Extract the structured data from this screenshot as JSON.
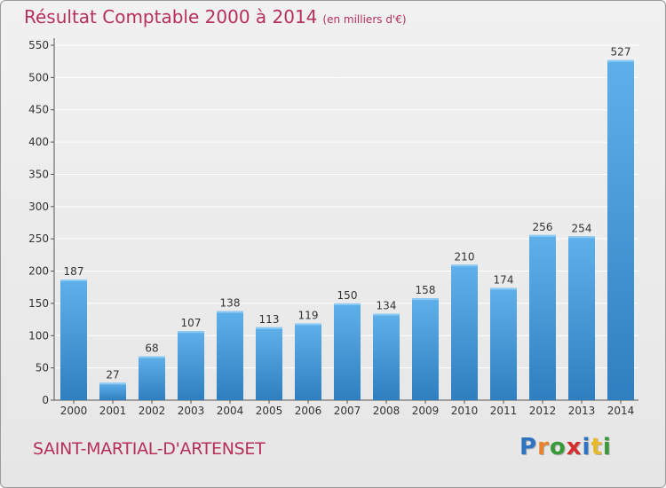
{
  "header": {
    "title": "Résultat Comptable 2000 à 2014",
    "unit": "(en milliers d'€)"
  },
  "footer": {
    "commune": "SAINT-MARTIAL-D'ARTENSET",
    "logo": {
      "letters": [
        "P",
        "r",
        "o",
        "x",
        "i",
        "t",
        "i"
      ],
      "colors": [
        "#2e74c0",
        "#e8832a",
        "#3a9a3a",
        "#d62d2d",
        "#2e74c0",
        "#e8b92a",
        "#3a9a3a"
      ]
    }
  },
  "colors": {
    "title": "#b8305a",
    "bar_top": "#5fb0ea",
    "bar_bottom": "#2f7fc0",
    "grid": "#ffffff",
    "axis_text": "#333333"
  },
  "chart_data": {
    "type": "bar",
    "categories": [
      "2000",
      "2001",
      "2002",
      "2003",
      "2004",
      "2005",
      "2006",
      "2007",
      "2008",
      "2009",
      "2010",
      "2011",
      "2012",
      "2013",
      "2014"
    ],
    "values": [
      187,
      27,
      68,
      107,
      138,
      113,
      119,
      150,
      134,
      158,
      210,
      174,
      256,
      254,
      527
    ],
    "y_ticks": [
      0,
      50,
      100,
      150,
      200,
      250,
      300,
      350,
      400,
      450,
      500,
      550
    ],
    "ylim": [
      0,
      550
    ],
    "grid": true,
    "data_labels": true
  }
}
